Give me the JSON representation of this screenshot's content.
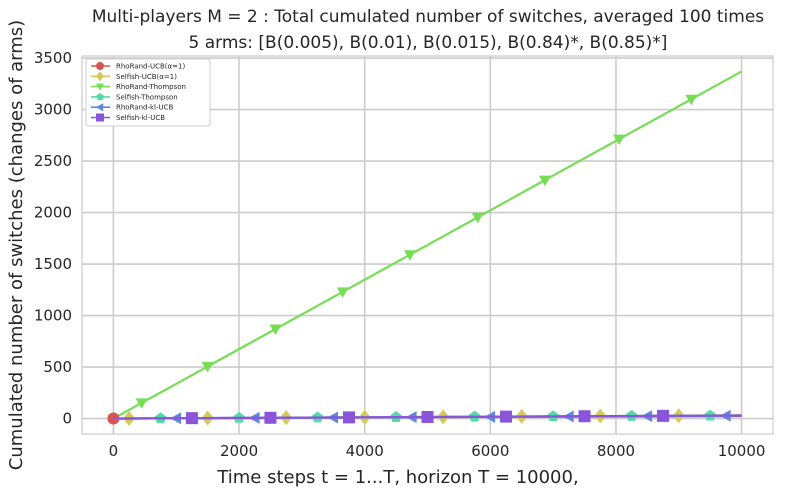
{
  "chart_data": {
    "type": "line",
    "title": "Multi-players M = 2 : Total cumulated number of switches, averaged 100 times",
    "subtitle": "5 arms: [B(0.005), B(0.01), B(0.015), B(0.84)*, B(0.85)*]",
    "xlabel": "Time steps t = 1...T, horizon T = 10000,",
    "ylabel": "Cumulated number of switches (changes of arms)",
    "xlim": [
      -500,
      10500
    ],
    "ylim": [
      -150,
      3520
    ],
    "xticks": [
      0,
      2000,
      4000,
      6000,
      8000,
      10000
    ],
    "yticks": [
      0,
      500,
      1000,
      1500,
      2000,
      2500,
      3000,
      3500
    ],
    "grid": true,
    "legend_position": "top-left",
    "series": [
      {
        "name": "RhoRand-UCB(α=1)",
        "color": "#d9534f",
        "marker": "circle",
        "x": [
          0,
          10000
        ],
        "y": [
          0,
          25
        ],
        "marker_x": [
          0
        ]
      },
      {
        "name": "Selfish-UCB(α=1)",
        "color": "#d4c95a",
        "marker": "diamond",
        "x": [
          0,
          10000
        ],
        "y": [
          0,
          32
        ],
        "marker_x": [
          250,
          1500,
          2750,
          4000,
          5250,
          6500,
          7750,
          9000
        ]
      },
      {
        "name": "RhoRand-Thompson",
        "color": "#77dd55",
        "marker": "triangle-down",
        "x": [
          0,
          10000
        ],
        "y": [
          0,
          3370
        ],
        "marker_x": [
          450,
          1500,
          2580,
          3650,
          4720,
          5800,
          6870,
          8050,
          9200
        ]
      },
      {
        "name": "Selfish-Thompson",
        "color": "#55d9a8",
        "marker": "pentagon",
        "x": [
          0,
          10000
        ],
        "y": [
          0,
          30
        ],
        "marker_x": [
          750,
          2000,
          3250,
          4500,
          5750,
          7000,
          8250,
          9500
        ]
      },
      {
        "name": "RhoRand-kl-UCB",
        "color": "#5f86e0",
        "marker": "triangle-left",
        "x": [
          0,
          10000
        ],
        "y": [
          0,
          28
        ],
        "marker_x": [
          1000,
          2250,
          3500,
          4750,
          6000,
          7250,
          8500,
          9750
        ]
      },
      {
        "name": "Selfish-kl-UCB",
        "color": "#8a55d9",
        "marker": "square",
        "x": [
          0,
          10000
        ],
        "y": [
          0,
          30
        ],
        "marker_x": [
          1250,
          2500,
          3750,
          5000,
          6250,
          7500,
          8750
        ]
      }
    ]
  }
}
